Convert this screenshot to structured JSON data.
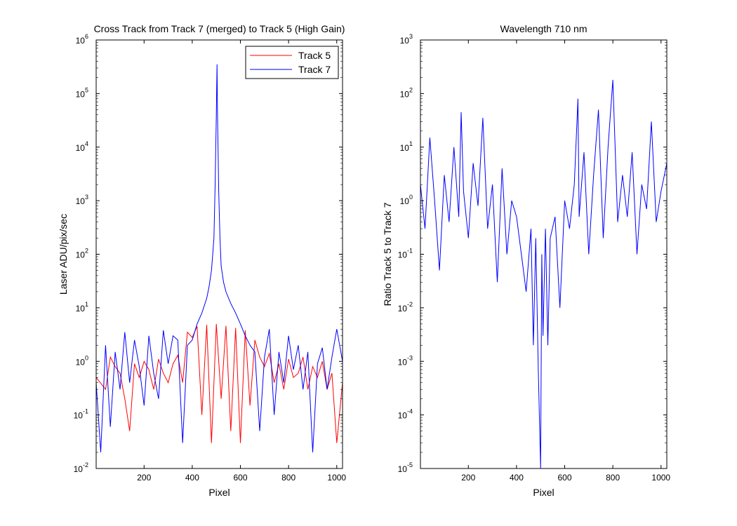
{
  "chart_data": [
    {
      "type": "line",
      "title": "Cross Track from Track 7 (merged) to Track 5 (High Gain)",
      "xlabel": "Pixel",
      "ylabel": "Laser ADU/pix/sec",
      "xlim": [
        1,
        1024
      ],
      "ylim": [
        0.01,
        1000000
      ],
      "yscale": "log",
      "xticks": [
        200,
        400,
        600,
        800,
        1000
      ],
      "yticks": [
        0.01,
        0.1,
        1,
        10,
        100,
        1000,
        10000,
        100000,
        1000000
      ],
      "ytick_labels": [
        {
          "base": "10",
          "exp": "-2"
        },
        {
          "base": "10",
          "exp": "-1"
        },
        {
          "base": "10",
          "exp": "0"
        },
        {
          "base": "10",
          "exp": "1"
        },
        {
          "base": "10",
          "exp": "2"
        },
        {
          "base": "10",
          "exp": "3"
        },
        {
          "base": "10",
          "exp": "4"
        },
        {
          "base": "10",
          "exp": "5"
        },
        {
          "base": "10",
          "exp": "6"
        }
      ],
      "grid": false,
      "legend_position": "top-right",
      "series": [
        {
          "name": "Track 5",
          "color": "#ff0000",
          "x": [
            1,
            40,
            60,
            80,
            100,
            120,
            140,
            160,
            180,
            200,
            220,
            240,
            260,
            280,
            300,
            320,
            340,
            360,
            380,
            400,
            420,
            440,
            460,
            480,
            500,
            520,
            540,
            560,
            580,
            600,
            620,
            640,
            660,
            680,
            700,
            720,
            740,
            760,
            780,
            800,
            820,
            840,
            860,
            880,
            900,
            920,
            940,
            960,
            980,
            1000,
            1024
          ],
          "y": [
            0.5,
            0.3,
            1.2,
            0.8,
            0.6,
            0.2,
            0.05,
            0.9,
            0.5,
            1.0,
            0.7,
            0.3,
            1.1,
            0.6,
            0.4,
            0.9,
            1.3,
            0.4,
            3.5,
            2.8,
            4.5,
            0.1,
            4.8,
            0.03,
            5.0,
            0.2,
            4.6,
            0.05,
            4.2,
            0.03,
            3.8,
            0.15,
            2.5,
            1.2,
            0.8,
            1.4,
            0.4,
            0.9,
            0.3,
            1.1,
            0.5,
            0.6,
            1.2,
            0.3,
            0.8,
            0.5,
            1.0,
            0.3,
            0.6,
            0.03,
            0.4
          ]
        },
        {
          "name": "Track 7",
          "color": "#0000ff",
          "x": [
            1,
            20,
            40,
            60,
            80,
            100,
            120,
            140,
            160,
            180,
            200,
            220,
            240,
            260,
            280,
            300,
            320,
            340,
            360,
            380,
            400,
            420,
            440,
            460,
            470,
            480,
            490,
            495,
            500,
            503,
            505,
            510,
            515,
            520,
            530,
            540,
            560,
            580,
            600,
            620,
            640,
            660,
            680,
            700,
            720,
            740,
            760,
            780,
            800,
            820,
            840,
            860,
            880,
            900,
            920,
            940,
            960,
            980,
            1000,
            1024
          ],
          "y": [
            0.4,
            0.02,
            2.0,
            0.06,
            1.5,
            0.3,
            3.5,
            0.4,
            2.5,
            0.8,
            0.15,
            3.0,
            0.6,
            0.2,
            3.8,
            0.9,
            3.0,
            2.5,
            0.03,
            2.0,
            2.5,
            5.0,
            8.0,
            15,
            25,
            50,
            200,
            2000,
            40000,
            350000,
            40000,
            1500,
            200,
            60,
            30,
            20,
            12,
            8,
            5,
            3,
            2,
            1.5,
            0.05,
            1.2,
            4.0,
            0.1,
            1.5,
            0.4,
            3.0,
            0.7,
            2.0,
            0.3,
            1.5,
            0.02,
            0.9,
            1.8,
            0.3,
            1.2,
            4.0,
            1.0
          ]
        }
      ]
    },
    {
      "type": "line",
      "title": "Wavelength 710 nm",
      "xlabel": "Pixel",
      "ylabel": "Ratio Track 5 to Track 7",
      "xlim": [
        1,
        1024
      ],
      "ylim": [
        1e-05,
        1000
      ],
      "yscale": "log",
      "xticks": [
        200,
        400,
        600,
        800,
        1000
      ],
      "yticks": [
        1e-05,
        0.0001,
        0.001,
        0.01,
        0.1,
        1,
        10,
        100,
        1000
      ],
      "ytick_labels": [
        {
          "base": "10",
          "exp": "-5"
        },
        {
          "base": "10",
          "exp": "-4"
        },
        {
          "base": "10",
          "exp": "-3"
        },
        {
          "base": "10",
          "exp": "-2"
        },
        {
          "base": "10",
          "exp": "-1"
        },
        {
          "base": "10",
          "exp": "0"
        },
        {
          "base": "10",
          "exp": "1"
        },
        {
          "base": "10",
          "exp": "2"
        },
        {
          "base": "10",
          "exp": "3"
        }
      ],
      "grid": false,
      "series": [
        {
          "color": "#0000ff",
          "x": [
            1,
            20,
            40,
            60,
            80,
            100,
            120,
            140,
            160,
            170,
            180,
            200,
            220,
            240,
            260,
            280,
            300,
            320,
            340,
            360,
            380,
            400,
            420,
            440,
            460,
            470,
            480,
            490,
            500,
            505,
            510,
            520,
            530,
            540,
            560,
            580,
            600,
            620,
            640,
            655,
            660,
            680,
            700,
            720,
            740,
            760,
            780,
            800,
            820,
            840,
            860,
            880,
            900,
            920,
            940,
            960,
            980,
            1000,
            1024
          ],
          "y": [
            2.0,
            0.3,
            15,
            1.0,
            0.05,
            3.0,
            0.4,
            10,
            0.5,
            45,
            1.5,
            0.2,
            5.0,
            0.8,
            35,
            0.3,
            2.0,
            0.03,
            4.0,
            0.1,
            1.0,
            0.5,
            0.1,
            0.02,
            0.3,
            0.002,
            0.2,
            0.0008,
            1e-05,
            0.1,
            0.003,
            0.3,
            0.002,
            0.2,
            0.5,
            0.01,
            1.0,
            0.3,
            2.0,
            80,
            0.5,
            8.0,
            0.1,
            3.0,
            50,
            0.2,
            10,
            180,
            0.4,
            3.0,
            0.5,
            8.0,
            0.1,
            2.0,
            0.7,
            30,
            0.4,
            1.5,
            5.0
          ]
        }
      ]
    }
  ]
}
